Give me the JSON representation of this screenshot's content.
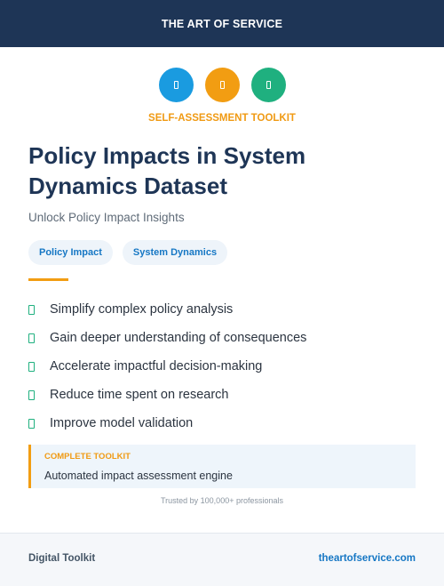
{
  "header": {
    "brand": "THE ART OF SERVICE"
  },
  "icons": [
    {
      "name": "document-icon",
      "color": "#1a9be0"
    },
    {
      "name": "document-icon",
      "color": "#f29d12"
    },
    {
      "name": "document-icon",
      "color": "#1fb07f"
    }
  ],
  "eyebrow": "SELF-ASSESSMENT TOOLKIT",
  "title": "Policy Impacts in System Dynamics Dataset",
  "subtitle": "Unlock Policy Impact Insights",
  "tags": [
    "Policy Impact",
    "System Dynamics"
  ],
  "benefits": [
    "Simplify complex policy analysis",
    "Gain deeper understanding of consequences",
    "Accelerate impactful decision-making",
    "Reduce time spent on research",
    "Improve model validation"
  ],
  "callout": {
    "label": "COMPLETE TOOLKIT",
    "value": "Automated impact assessment engine"
  },
  "trusted": "Trusted by 100,000+ professionals",
  "footer": {
    "left": "Digital Toolkit",
    "right": "theartofservice.com"
  },
  "colors": {
    "navy": "#1e3556",
    "accent_orange": "#f29d12",
    "accent_blue": "#1a9be0",
    "accent_green": "#1fb07f",
    "link_blue": "#1677c4"
  }
}
